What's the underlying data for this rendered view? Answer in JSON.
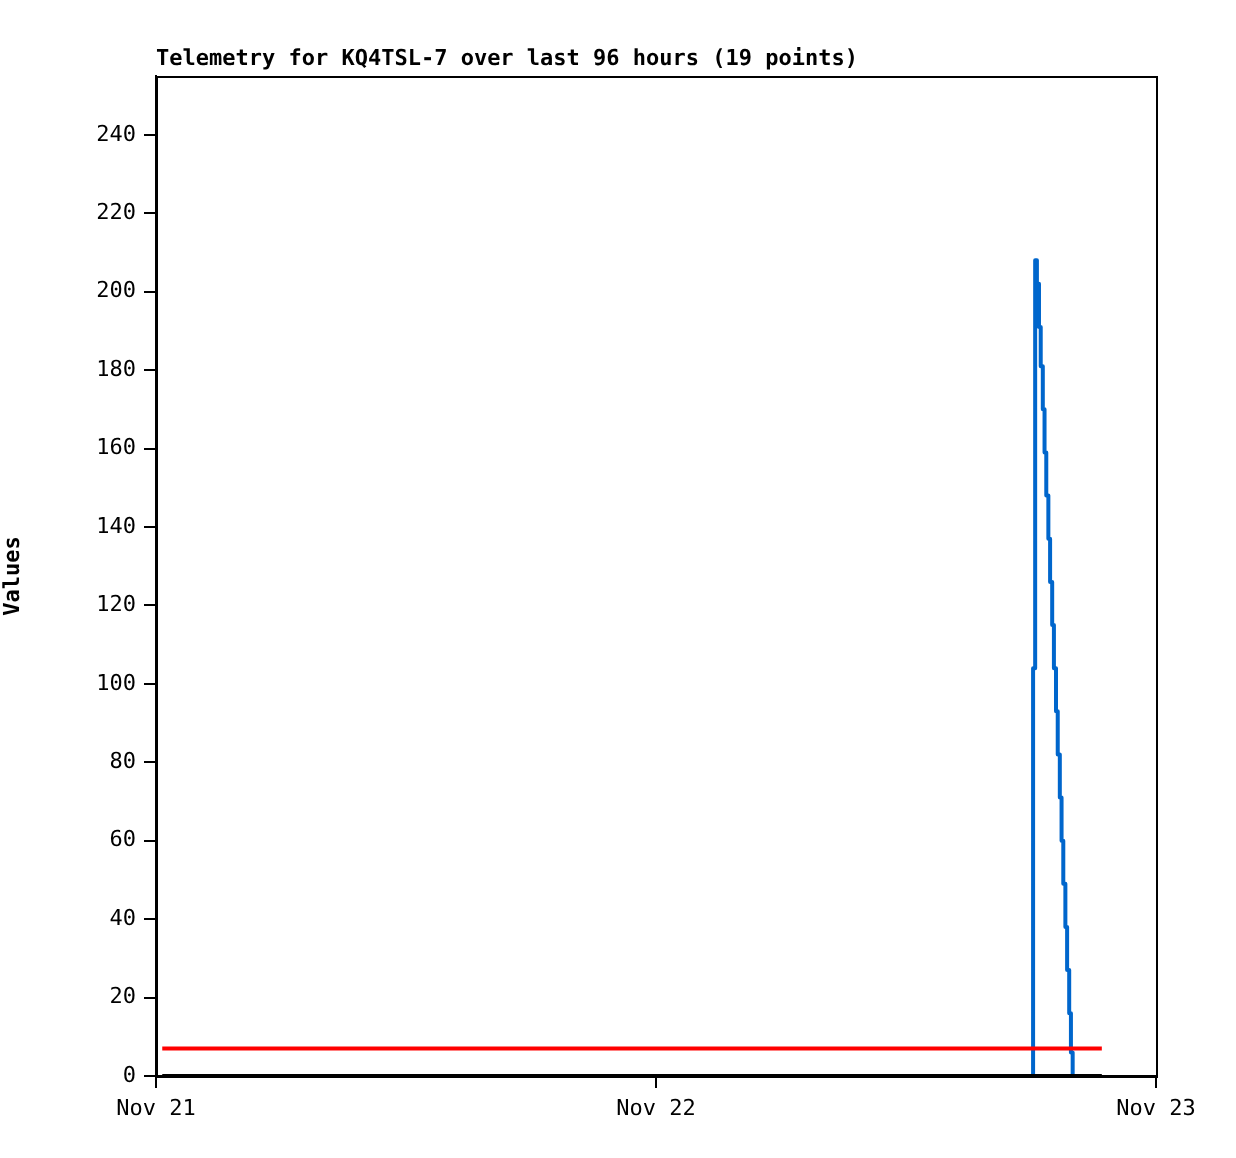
{
  "chart_data": {
    "type": "line",
    "title": "Telemetry for KQ4TSL-7 over last 96 hours (19 points)",
    "ylabel": "Values",
    "xlim": [
      "--11-21",
      "--11-23"
    ],
    "xticks": [
      {
        "value": "--11-21",
        "label": "Nov 21"
      },
      {
        "value": "--11-22",
        "label": "Nov 22"
      },
      {
        "value": "--11-23",
        "label": "Nov 23"
      }
    ],
    "ylim": [
      0,
      255
    ],
    "yticks": [
      0,
      20,
      40,
      60,
      80,
      100,
      120,
      140,
      160,
      180,
      200,
      220,
      240
    ],
    "grid": false,
    "legend": false,
    "marker": "none",
    "line_style": "solid",
    "series": [
      {
        "type": "line",
        "color": "#000000",
        "x": [
          "--11-21T00:18",
          "--11-22T21:24"
        ],
        "values": [
          0,
          0
        ]
      },
      {
        "type": "line",
        "color": "#ff0000",
        "x": [
          "--11-21T00:18",
          "--11-22T21:24"
        ],
        "values": [
          7,
          7
        ]
      },
      {
        "type": "step",
        "color": "#0066cc",
        "x": [
          "--11-22T18:00",
          "--11-22T18:06",
          "--11-22T18:12",
          "--11-22T18:17",
          "--11-22T18:23",
          "--11-22T18:28",
          "--11-22T18:34",
          "--11-22T18:39",
          "--11-22T18:44",
          "--11-22T18:50",
          "--11-22T18:55",
          "--11-22T19:01",
          "--11-22T19:06",
          "--11-22T19:12",
          "--11-22T19:17",
          "--11-22T19:23",
          "--11-22T19:28",
          "--11-22T19:33",
          "--11-22T19:39",
          "--11-22T19:44",
          "--11-22T19:50",
          "--11-22T19:55",
          "--11-22T20:00"
        ],
        "values": [
          0,
          104,
          208,
          202,
          191,
          181,
          170,
          159,
          148,
          137,
          126,
          115,
          104,
          93,
          82,
          71,
          60,
          49,
          38,
          27,
          16,
          6,
          0
        ]
      }
    ]
  }
}
